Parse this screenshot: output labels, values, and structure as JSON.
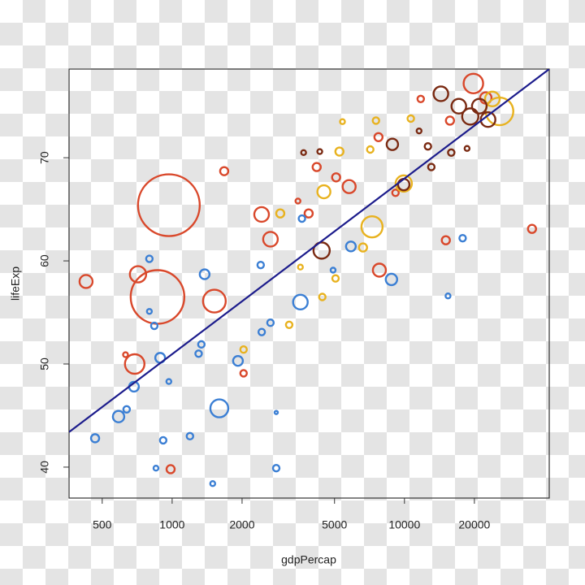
{
  "chart_data": {
    "type": "scatter",
    "x_label": "gdpPercap",
    "y_label": "lifeExp",
    "xscale": "log",
    "xlim": [
      360,
      42000
    ],
    "ylim": [
      37,
      78.6
    ],
    "xticks": [
      500,
      1000,
      2000,
      5000,
      10000,
      20000
    ],
    "yticks": [
      40,
      50,
      60,
      70
    ],
    "series": [
      {
        "color": "#d9482b",
        "x": [
          426,
          968,
          865,
          713,
          1520,
          690,
          985,
          1675,
          2427,
          2650,
          2030,
          5780,
          7800,
          4190,
          5080,
          7730,
          15070,
          35400,
          19800,
          15700,
          22400,
          3870,
          3480,
          630,
          11750,
          9150
        ],
        "values": [
          58.0,
          65.4,
          56.5,
          58.7,
          56.1,
          50.0,
          39.8,
          68.7,
          64.5,
          62.1,
          49.1,
          67.2,
          59.1,
          69.1,
          68.1,
          72.0,
          62.0,
          63.1,
          77.2,
          73.6,
          75.8,
          64.6,
          65.8,
          50.9,
          75.7,
          66.6
        ],
        "sizes": [
          8,
          38,
          33,
          10,
          14,
          12,
          5,
          5,
          9,
          9,
          4,
          8,
          8,
          5,
          5,
          5,
          5,
          5,
          12,
          5,
          7,
          5,
          3,
          3,
          4,
          4
        ]
      },
      {
        "color": "#3b7fd4",
        "x": [
          588,
          466,
          685,
          888,
          798,
          1380,
          1596,
          1920,
          3565,
          5880,
          8790,
          3620,
          2806,
          2806,
          1495,
          915,
          1193,
          1336,
          2405,
          2650,
          838,
          798,
          968,
          637,
          852,
          17800,
          15400,
          4930,
          1300,
          2430
        ],
        "values": [
          44.9,
          42.8,
          47.8,
          50.6,
          60.2,
          58.7,
          45.7,
          50.3,
          56.0,
          61.4,
          58.2,
          64.1,
          45.3,
          39.9,
          38.4,
          42.6,
          43.0,
          51.9,
          59.6,
          54.0,
          53.7,
          55.1,
          48.3,
          45.6,
          39.9,
          62.2,
          56.6,
          59.1,
          51.0,
          53.1
        ],
        "sizes": [
          7,
          5,
          6,
          6,
          4,
          6,
          11,
          6,
          9,
          6,
          7,
          4,
          2,
          4,
          3,
          4,
          4,
          4,
          4,
          4,
          4,
          3,
          3,
          4,
          3,
          4,
          3,
          3,
          4,
          4
        ]
      },
      {
        "color": "#e8b21f",
        "x": [
          7250,
          9930,
          4500,
          5250,
          6630,
          25650,
          23900,
          5050,
          4430,
          2920,
          3190,
          2030,
          7125,
          7540,
          10650,
          5410,
          3565
        ],
        "values": [
          63.3,
          67.5,
          66.7,
          70.6,
          61.3,
          74.5,
          75.7,
          58.3,
          56.5,
          64.6,
          53.8,
          51.4,
          70.8,
          73.6,
          73.8,
          73.5,
          59.4
        ],
        "sizes": [
          13,
          10,
          8,
          5,
          5,
          17,
          9,
          4,
          4,
          5,
          4,
          4,
          4,
          4,
          4,
          3,
          3
        ]
      },
      {
        "color": "#7a2a12",
        "x": [
          4400,
          14350,
          17140,
          19200,
          21000,
          22900,
          9930,
          8870,
          12620,
          3680,
          4320,
          15900,
          13050,
          18600,
          11560
        ],
        "values": [
          61.0,
          76.2,
          75.0,
          74.0,
          75.0,
          73.7,
          67.4,
          71.3,
          71.1,
          70.5,
          70.6,
          70.5,
          69.1,
          70.9,
          72.6
        ],
        "sizes": [
          10,
          9,
          9,
          10,
          9,
          9,
          7,
          7,
          4,
          3,
          3,
          4,
          4,
          3,
          3
        ]
      }
    ],
    "lines": [
      {
        "color": "#1c1c8c",
        "x": [
          360,
          42000
        ],
        "values": [
          43.4,
          78.6
        ]
      }
    ]
  }
}
